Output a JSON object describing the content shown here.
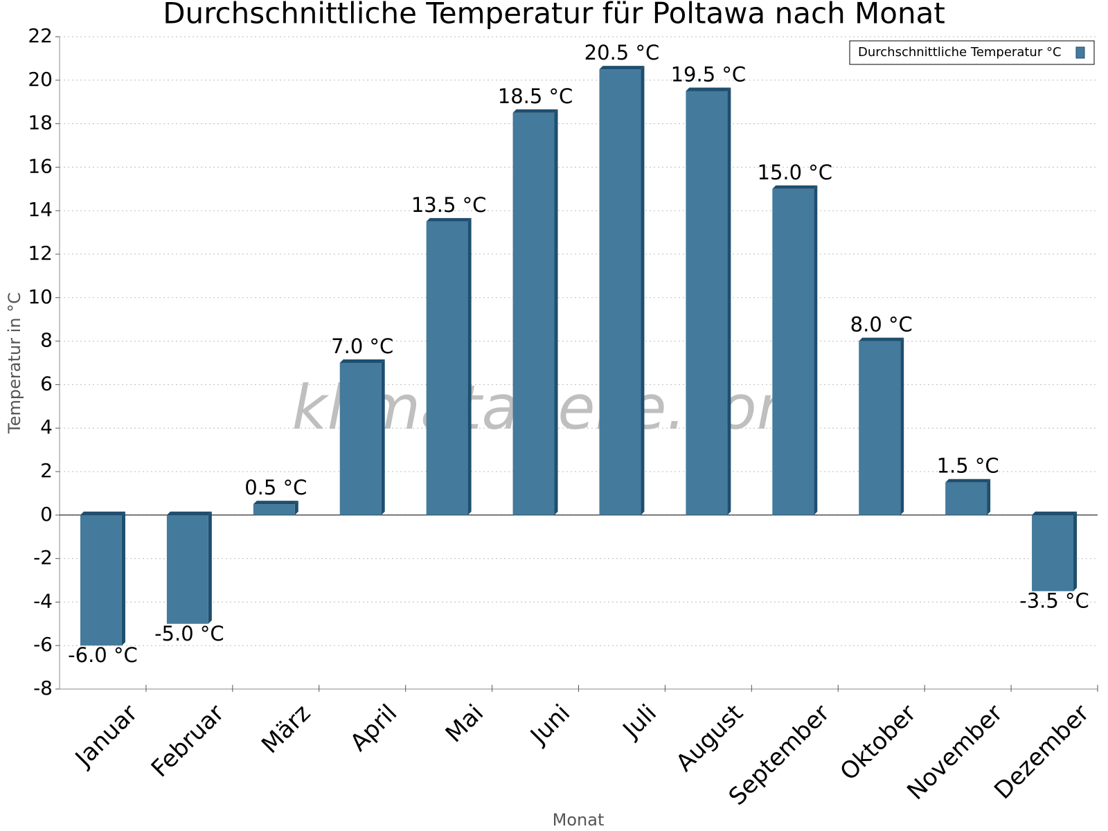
{
  "chart_data": {
    "type": "bar",
    "title": "Durchschnittliche Temperatur für Poltawa nach Monat",
    "x_label": "Monat",
    "y_label": "Temperatur in °C",
    "watermark": "klimatabelle.com",
    "categories": [
      "Januar",
      "Februar",
      "März",
      "April",
      "Mai",
      "Juni",
      "Juli",
      "August",
      "September",
      "Oktober",
      "November",
      "Dezember"
    ],
    "series": [
      {
        "name": "Durchschnittliche Temperatur °C",
        "color": "#447a9c",
        "values": [
          -6.0,
          -5.0,
          0.5,
          7.0,
          13.5,
          18.5,
          20.5,
          19.5,
          15.0,
          8.0,
          1.5,
          -3.5
        ],
        "value_labels": [
          "-6.0 °C",
          "-5.0 °C",
          "0.5 °C",
          "7.0 °C",
          "13.5 °C",
          "18.5 °C",
          "20.5 °C",
          "19.5 °C",
          "15.0 °C",
          "8.0 °C",
          "1.5 °C",
          "-3.5 °C"
        ]
      }
    ],
    "ylim": [
      -8,
      22
    ],
    "yticks": [
      -8,
      -6,
      -4,
      -2,
      0,
      2,
      4,
      6,
      8,
      10,
      12,
      14,
      16,
      18,
      20,
      22
    ],
    "grid": true,
    "legend": "top-right"
  }
}
